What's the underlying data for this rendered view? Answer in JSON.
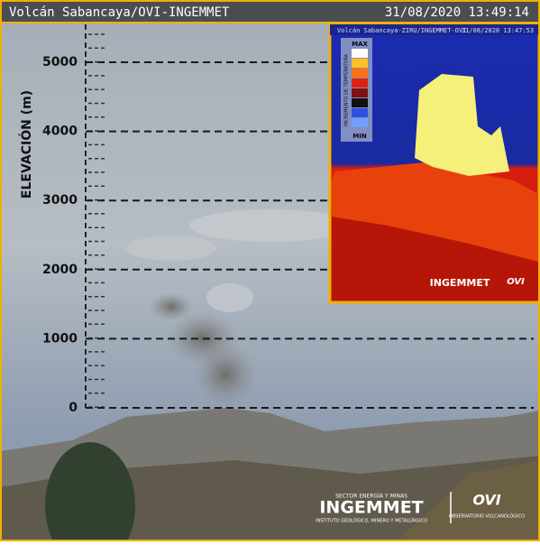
{
  "header": {
    "title": "Volcán Sabancaya/OVI-INGEMMET",
    "timestamp": "31/08/2020 13:49:14"
  },
  "scale": {
    "label": "ELEVACIÓN (m)",
    "ticks": [
      0,
      1000,
      2000,
      3000,
      4000,
      5000
    ]
  },
  "inset": {
    "title": "Volcán Sabancaya-ZIRU/INGEMMET-OVI",
    "timestamp": "31/08/2020 13:47:53",
    "max": "MAX",
    "min": "MIN",
    "legend_label": "INCREMENTO DE TEMPERATURA",
    "logo": "INGEMMET",
    "logo2": "OVI"
  },
  "footer": {
    "sector": "SECTOR ENERGÍA Y MINAS",
    "logo": "INGEMMET",
    "institute": "INSTITUTO GEOLÓGICO, MINERO Y METALÚRGICO",
    "ovi": "OVI",
    "observatory": "OBSERVATORIO VULCANOLÓGICO"
  }
}
